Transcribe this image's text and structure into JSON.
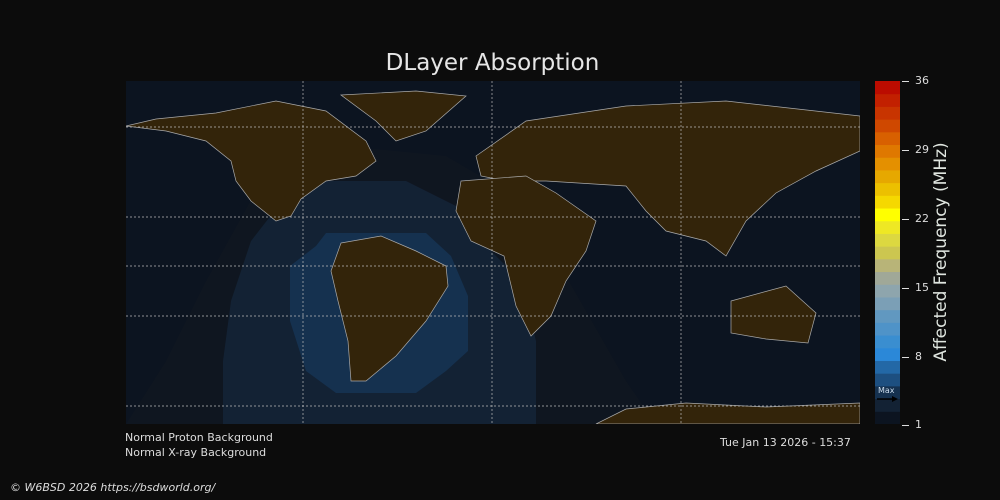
{
  "title": "DLayer Absorption",
  "colorbar": {
    "label": "Affected Frequency (MHz)",
    "ticks": [
      "36",
      "29",
      "22",
      "15",
      "8",
      "1"
    ],
    "min": 1,
    "max": 36,
    "max_marker": "Max",
    "colors": [
      "#0c1420",
      "#132234",
      "#15314f",
      "#1d4f80",
      "#2368a6",
      "#2b88d8",
      "#3a8ed0",
      "#4f93c8",
      "#6198c0",
      "#7b9fb6",
      "#8ea5ad",
      "#a0a898",
      "#b8b478",
      "#ccc650",
      "#dcd840",
      "#eee824",
      "#ffff00",
      "#f5d800",
      "#ecc000",
      "#e6a800",
      "#e49000",
      "#df7800",
      "#d86000",
      "#cf4800",
      "#c83400",
      "#c22000",
      "#bb0c00"
    ]
  },
  "map": {
    "background": "#0c1420",
    "land": "#33240a",
    "zones": [
      "#0f1620",
      "#132234",
      "#15314f"
    ]
  },
  "status": {
    "proton": "Normal Proton Background",
    "xray": "Normal X-ray Background",
    "timestamp": "Tue Jan 13 2026 - 15:37"
  },
  "footer": "© W6BSD 2026 https://bsdworld.org/"
}
